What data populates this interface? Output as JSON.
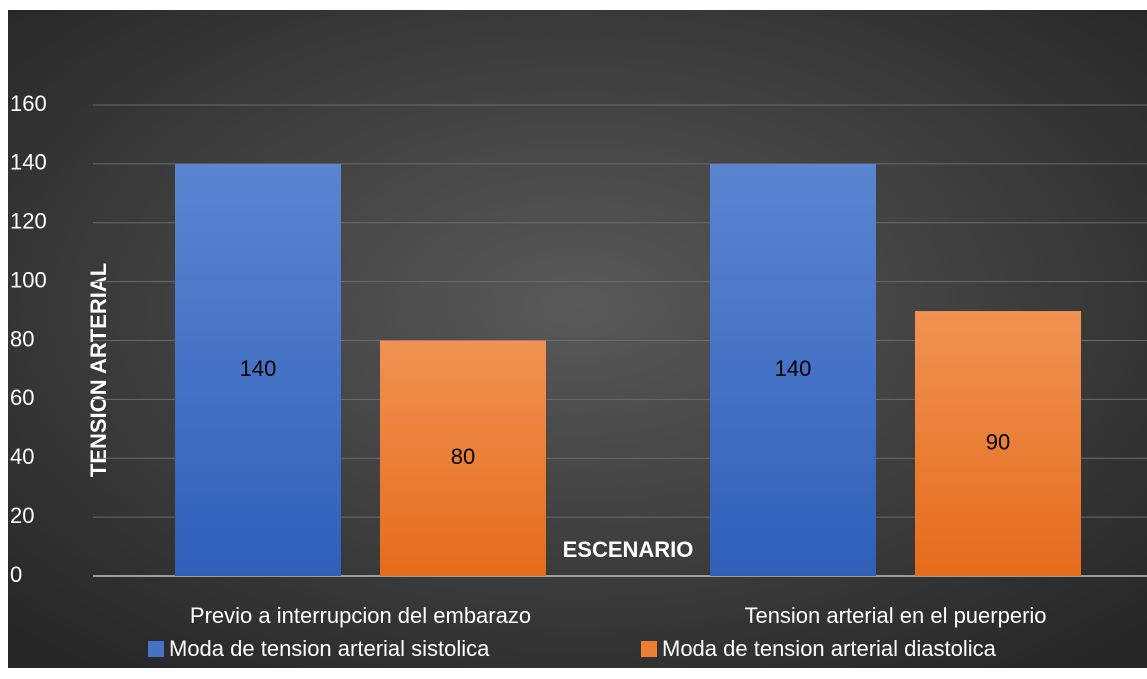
{
  "chart_data": {
    "type": "bar",
    "x_label": "ESCENARIO",
    "y_label": "TENSION ARTERIAL",
    "categories": [
      "Previo a interrupcion del embarazo",
      "Tension arterial en el puerperio"
    ],
    "series": [
      {
        "name": "Moda de tension arterial sistolica",
        "color": "#4472c4",
        "values": [
          140,
          140
        ]
      },
      {
        "name": "Moda de tension arterial diastolica",
        "color": "#ed7d31",
        "values": [
          80,
          90
        ]
      }
    ],
    "ylim": [
      0,
      160
    ],
    "yticks": [
      0,
      20,
      40,
      60,
      80,
      100,
      120,
      140,
      160
    ],
    "grid": true,
    "legend": "bottom"
  }
}
